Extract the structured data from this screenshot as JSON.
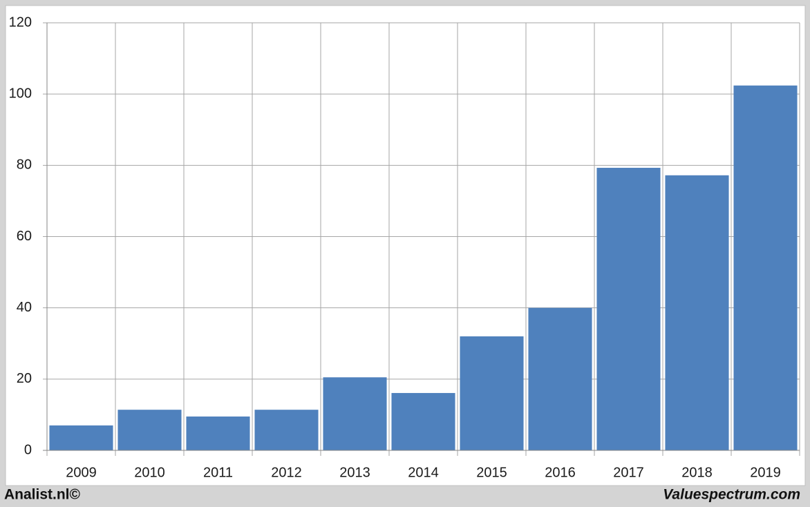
{
  "chart_data": {
    "type": "bar",
    "categories": [
      "2009",
      "2010",
      "2011",
      "2012",
      "2013",
      "2014",
      "2015",
      "2016",
      "2017",
      "2018",
      "2019"
    ],
    "values": [
      7.0,
      11.4,
      9.5,
      11.4,
      20.5,
      16.1,
      32.0,
      40.0,
      79.3,
      77.2,
      102.4
    ],
    "color": "#4f81bd",
    "ylim": [
      0,
      120
    ],
    "yticks": [
      0,
      20,
      40,
      60,
      80,
      100,
      120
    ],
    "grid": true
  },
  "footer": {
    "left": "Analist.nl©",
    "right": "Valuespectrum.com"
  }
}
